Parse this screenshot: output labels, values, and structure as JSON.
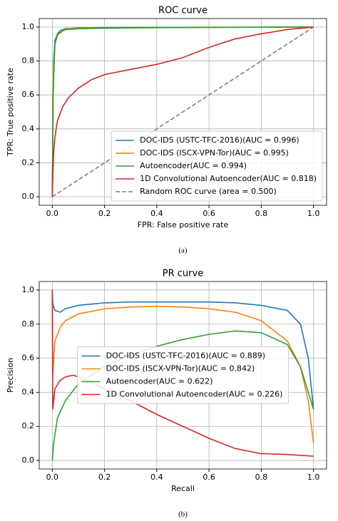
{
  "chart_data": [
    {
      "type": "line",
      "title": "ROC curve",
      "xlabel": "FPR: False positive rate",
      "ylabel": "TPR: True positive rate",
      "caption": "(a)",
      "xlim": [
        -0.05,
        1.05
      ],
      "ylim": [
        -0.05,
        1.05
      ],
      "xticks": [
        {
          "value": 0,
          "label": "0.0"
        },
        0.2,
        0.4,
        0.6,
        0.8,
        {
          "value": 1,
          "label": "1.0"
        }
      ],
      "yticks": [
        {
          "value": 0,
          "label": "0.0"
        },
        0.2,
        0.4,
        0.6,
        0.8,
        {
          "value": 1,
          "label": "1.0"
        }
      ],
      "grid": true,
      "legend_loc": "lower right",
      "series": [
        {
          "name": "DOC-IDS (USTC-TFC-2016)(AUC = 0.996)",
          "color": "#1f77b4",
          "linestyle": "solid",
          "x": [
            0,
            0.005,
            0.01,
            0.02,
            0.03,
            0.05,
            0.1,
            0.2,
            0.4,
            0.6,
            0.8,
            1.0
          ],
          "values": [
            0,
            0.8,
            0.92,
            0.96,
            0.98,
            0.99,
            0.995,
            0.997,
            0.998,
            0.999,
            0.999,
            1.0
          ]
        },
        {
          "name": "DOC-IDS (ISCX-VPN-Tor)(AUC = 0.995)",
          "color": "#ff7f0e",
          "linestyle": "solid",
          "x": [
            0,
            0.005,
            0.01,
            0.02,
            0.04,
            0.06,
            0.1,
            0.2,
            0.4,
            0.6,
            0.8,
            1.0
          ],
          "values": [
            0,
            0.75,
            0.9,
            0.95,
            0.98,
            0.99,
            0.992,
            0.994,
            0.996,
            0.998,
            0.999,
            1.0
          ]
        },
        {
          "name": "Autoencoder(AUC = 0.994)",
          "color": "#2ca02c",
          "linestyle": "solid",
          "x": [
            0,
            0.003,
            0.01,
            0.02,
            0.05,
            0.1,
            0.2,
            0.4,
            0.6,
            0.8,
            1.0
          ],
          "values": [
            0,
            0.6,
            0.9,
            0.96,
            0.985,
            0.99,
            0.993,
            0.996,
            0.998,
            0.999,
            1.0
          ]
        },
        {
          "name": "1D Convolutional Autoencoder(AUC = 0.818)",
          "color": "#d62728",
          "linestyle": "solid",
          "x": [
            0,
            0.005,
            0.01,
            0.02,
            0.04,
            0.06,
            0.1,
            0.15,
            0.2,
            0.3,
            0.4,
            0.5,
            0.6,
            0.7,
            0.8,
            0.9,
            1.0
          ],
          "values": [
            0,
            0.25,
            0.35,
            0.45,
            0.53,
            0.58,
            0.64,
            0.69,
            0.72,
            0.75,
            0.78,
            0.82,
            0.88,
            0.93,
            0.96,
            0.985,
            1.0
          ]
        },
        {
          "name": "Random ROC curve (area = 0.500)",
          "color": "#808080",
          "linestyle": "dashed",
          "x": [
            0,
            1
          ],
          "values": [
            0,
            1
          ]
        }
      ]
    },
    {
      "type": "line",
      "title": "PR curve",
      "xlabel": "Recall",
      "ylabel": "Precision",
      "caption": "(b)",
      "xlim": [
        -0.05,
        1.05
      ],
      "ylim": [
        -0.05,
        1.05
      ],
      "xticks": [
        {
          "value": 0,
          "label": "0.0"
        },
        0.2,
        0.4,
        0.6,
        0.8,
        {
          "value": 1,
          "label": "1.0"
        }
      ],
      "yticks": [
        {
          "value": 0,
          "label": "0.0"
        },
        0.2,
        0.4,
        0.6,
        0.8,
        {
          "value": 1,
          "label": "1.0"
        }
      ],
      "grid": true,
      "legend_loc": "center",
      "series": [
        {
          "name": "DOC-IDS (USTC-TFC-2016)(AUC = 0.889)",
          "color": "#1f77b4",
          "linestyle": "solid",
          "x": [
            0,
            0.002,
            0.01,
            0.03,
            0.05,
            0.1,
            0.2,
            0.3,
            0.4,
            0.5,
            0.6,
            0.7,
            0.8,
            0.9,
            0.95,
            0.98,
            1.0
          ],
          "values": [
            1.0,
            0.92,
            0.88,
            0.87,
            0.89,
            0.91,
            0.925,
            0.93,
            0.93,
            0.93,
            0.93,
            0.925,
            0.91,
            0.88,
            0.8,
            0.6,
            0.3
          ]
        },
        {
          "name": "DOC-IDS (ISCX-VPN-Tor)(AUC = 0.842)",
          "color": "#ff7f0e",
          "linestyle": "solid",
          "x": [
            0,
            0.002,
            0.01,
            0.03,
            0.05,
            0.1,
            0.2,
            0.3,
            0.4,
            0.5,
            0.6,
            0.7,
            0.8,
            0.9,
            0.95,
            0.98,
            1.0
          ],
          "values": [
            1.0,
            0.5,
            0.7,
            0.78,
            0.82,
            0.86,
            0.89,
            0.9,
            0.905,
            0.9,
            0.89,
            0.87,
            0.82,
            0.7,
            0.55,
            0.35,
            0.1
          ]
        },
        {
          "name": "Autoencoder(AUC = 0.622)",
          "color": "#2ca02c",
          "linestyle": "solid",
          "x": [
            0,
            0.005,
            0.02,
            0.05,
            0.1,
            0.2,
            0.3,
            0.4,
            0.5,
            0.6,
            0.7,
            0.8,
            0.9,
            0.95,
            1.0
          ],
          "values": [
            0,
            0.1,
            0.25,
            0.35,
            0.45,
            0.55,
            0.62,
            0.67,
            0.71,
            0.74,
            0.76,
            0.75,
            0.68,
            0.55,
            0.3
          ]
        },
        {
          "name": "1D Convolutional Autoencoder(AUC = 0.226)",
          "color": "#d62728",
          "linestyle": "solid",
          "x": [
            0,
            0.002,
            0.01,
            0.03,
            0.05,
            0.08,
            0.1,
            0.15,
            0.2,
            0.3,
            0.4,
            0.5,
            0.6,
            0.7,
            0.8,
            0.9,
            1.0
          ],
          "values": [
            1.0,
            0.3,
            0.42,
            0.47,
            0.49,
            0.5,
            0.49,
            0.46,
            0.42,
            0.35,
            0.27,
            0.2,
            0.13,
            0.07,
            0.04,
            0.035,
            0.025
          ]
        }
      ]
    }
  ]
}
